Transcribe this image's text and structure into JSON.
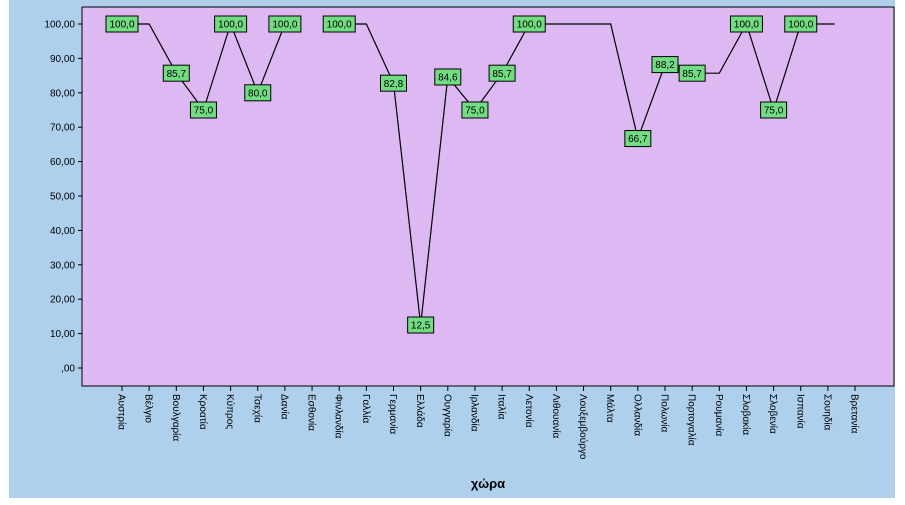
{
  "chart_data": {
    "type": "line",
    "xlabel": "χώρα",
    "ylabel": "",
    "ylim": [
      0,
      105
    ],
    "yticks": [
      0,
      10,
      20,
      30,
      40,
      50,
      60,
      70,
      80,
      90,
      100
    ],
    "ytick_labels": [
      ",00",
      "10,00",
      "20,00",
      "30,00",
      "40,00",
      "50,00",
      "60,00",
      "70,00",
      "80,00",
      "90,00",
      "100,00"
    ],
    "categories": [
      "Αυστρία",
      "Βέλγιο",
      "Βουλγαρία",
      "Κροατία",
      "Κύπρος",
      "Τσεχία",
      "Δανία",
      "Εσθονία",
      "Φινλανδία",
      "Γαλλία",
      "Γερμανία",
      "Ελλάδα",
      "Ουγγαρία",
      "Ιρλανδία",
      "Ιταλία",
      "Λετονία",
      "Λιθουανία",
      "Λουξεμβούργο",
      "Μάλτα",
      "Ολλανδία",
      "Πολωνία",
      "Πορτογαλία",
      "Ρουμανία",
      "Σλοβακία",
      "Σλοβενία",
      "Ισπανία",
      "Σουηδία",
      "Βρετανία"
    ],
    "series": [
      {
        "values": [
          100,
          100,
          85.7,
          75,
          100,
          80,
          100,
          null,
          100,
          100,
          82.8,
          12.5,
          84.6,
          75,
          85.7,
          100,
          100,
          100,
          100,
          66.7,
          88.2,
          85.7,
          85.7,
          100,
          75,
          100,
          100,
          null
        ]
      }
    ],
    "data_labels": [
      "100,0",
      "",
      "85,7",
      "75,0",
      "100,0",
      "80,0",
      "100,0",
      "",
      "100,0",
      "",
      "82,8",
      "12,5",
      "84,6",
      "75,0",
      "85,7",
      "100,0",
      "",
      "",
      "",
      "66,7",
      "88,2",
      "85,7",
      "",
      "100,0",
      "75,0",
      "100,0",
      "",
      ""
    ],
    "grid": false,
    "legend": "none",
    "colors": {
      "outer_background": "#aed0ec",
      "plot_background": "#ddb8f3",
      "line": "#000000",
      "label_box": "#72dc82",
      "label_border": "#000000"
    }
  }
}
